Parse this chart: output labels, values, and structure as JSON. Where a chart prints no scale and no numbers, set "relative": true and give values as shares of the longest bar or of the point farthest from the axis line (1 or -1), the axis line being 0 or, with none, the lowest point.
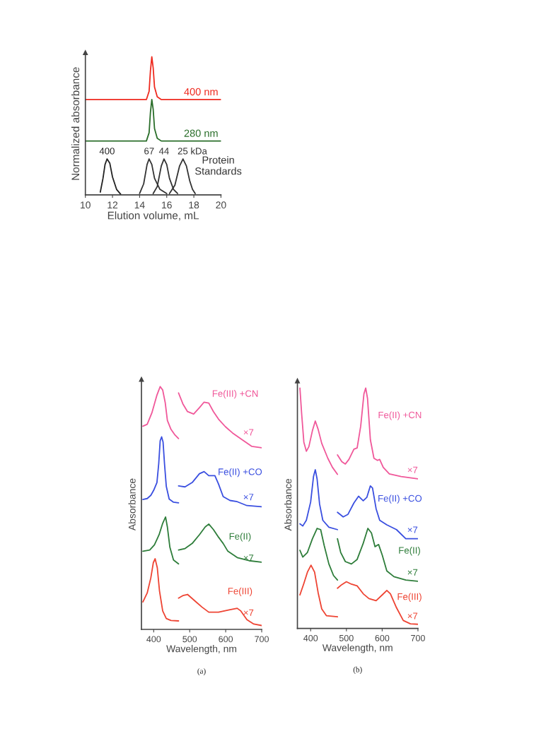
{
  "chart_data": [
    {
      "type": "line",
      "relative": true,
      "xlabel": "Elution volume, mL",
      "ylabel": "Normalized absorbance",
      "xlim": [
        10,
        20
      ],
      "xticks": [
        10,
        12,
        14,
        16,
        18,
        20
      ],
      "series": [
        {
          "name": "400 nm",
          "color": "#ee2a1f",
          "x": [
            10,
            14.5,
            14.7,
            14.8,
            14.9,
            15.0,
            15.1,
            15.3,
            15.6,
            20
          ],
          "values": [
            0.69,
            0.69,
            0.75,
            0.9,
            1.0,
            0.92,
            0.78,
            0.71,
            0.69,
            0.69
          ]
        },
        {
          "name": "280 nm",
          "color": "#2a6e2a",
          "x": [
            10,
            14.5,
            14.7,
            14.8,
            14.9,
            15.0,
            15.1,
            15.3,
            15.6,
            20
          ],
          "values": [
            0.39,
            0.39,
            0.45,
            0.6,
            0.69,
            0.62,
            0.48,
            0.41,
            0.39,
            0.39
          ]
        },
        {
          "name": "400",
          "color": "#222222",
          "x": [
            11.1,
            11.3,
            11.45,
            11.6,
            11.8,
            12.0,
            12.3,
            12.6
          ],
          "values": [
            0.02,
            0.12,
            0.22,
            0.26,
            0.23,
            0.13,
            0.04,
            0.005
          ]
        },
        {
          "name": "67",
          "color": "#333333",
          "x": [
            14.0,
            14.3,
            14.55,
            14.7,
            14.9,
            15.1,
            15.5,
            16.0
          ],
          "values": [
            0.01,
            0.08,
            0.22,
            0.26,
            0.22,
            0.12,
            0.04,
            0.01
          ]
        },
        {
          "name": "44",
          "color": "#333333",
          "x": [
            15.0,
            15.3,
            15.6,
            15.8,
            16.0,
            16.2,
            16.5,
            16.8
          ],
          "values": [
            0.01,
            0.06,
            0.21,
            0.26,
            0.22,
            0.12,
            0.04,
            0.01
          ]
        },
        {
          "name": "25 kDa",
          "color": "#333333",
          "x": [
            16.2,
            16.6,
            16.95,
            17.2,
            17.45,
            17.7,
            17.9,
            18.1
          ],
          "values": [
            0.01,
            0.07,
            0.21,
            0.26,
            0.21,
            0.1,
            0.04,
            0.01
          ]
        }
      ],
      "annotations": [
        "Protein\nStandards"
      ]
    },
    {
      "type": "line",
      "relative": true,
      "xlabel": "Wavelength, nm",
      "ylabel": "Absorbance",
      "xlim": [
        366,
        700
      ],
      "xticks": [
        400,
        500,
        600,
        700
      ],
      "series": [
        {
          "color": "#f0589a",
          "x": [
            370,
            382,
            395,
            409,
            418,
            425,
            432,
            438,
            448,
            458,
            469
          ],
          "values": [
            0.837,
            0.845,
            0.892,
            0.965,
            1.0,
            0.986,
            0.934,
            0.861,
            0.824,
            0.803,
            0.786
          ]
        },
        {
          "name": "Fe(III) +CN",
          "color": "#f0589a",
          "x": [
            469,
            481,
            494,
            511,
            527,
            540,
            553,
            566,
            580,
            599,
            619,
            645,
            672,
            700
          ],
          "values": [
            0.974,
            0.929,
            0.897,
            0.887,
            0.913,
            0.936,
            0.932,
            0.897,
            0.866,
            0.835,
            0.809,
            0.782,
            0.754,
            0.748
          ]
        },
        {
          "color": "#3a4fe0",
          "x": [
            370,
            382,
            392,
            400,
            409,
            414,
            418,
            422,
            426,
            430,
            435,
            443,
            455,
            469
          ],
          "values": [
            0.535,
            0.539,
            0.552,
            0.573,
            0.605,
            0.683,
            0.777,
            0.793,
            0.772,
            0.683,
            0.589,
            0.537,
            0.524,
            0.521
          ]
        },
        {
          "name": "Fe(II) +CO",
          "color": "#3a4fe0",
          "x": [
            469,
            487,
            507,
            527,
            540,
            553,
            570,
            580,
            593,
            612,
            632,
            659,
            700
          ],
          "values": [
            0.591,
            0.587,
            0.605,
            0.641,
            0.65,
            0.633,
            0.633,
            0.599,
            0.547,
            0.531,
            0.526,
            0.51,
            0.505
          ]
        },
        {
          "color": "#2e7d3a",
          "x": [
            370,
            389,
            402,
            415,
            425,
            433,
            438,
            445,
            455,
            469
          ],
          "values": [
            0.322,
            0.327,
            0.348,
            0.39,
            0.437,
            0.463,
            0.422,
            0.338,
            0.286,
            0.27
          ]
        },
        {
          "name": "Fe(II)",
          "color": "#2e7d3a",
          "x": [
            469,
            487,
            507,
            527,
            543,
            553,
            566,
            580,
            593,
            606,
            632,
            665,
            700
          ],
          "values": [
            0.327,
            0.333,
            0.354,
            0.39,
            0.422,
            0.434,
            0.411,
            0.38,
            0.354,
            0.322,
            0.296,
            0.283,
            0.277
          ]
        },
        {
          "color": "#ee4433",
          "x": [
            370,
            382,
            392,
            399,
            404,
            410,
            416,
            425,
            435,
            448,
            469
          ],
          "values": [
            0.113,
            0.15,
            0.212,
            0.275,
            0.291,
            0.254,
            0.16,
            0.076,
            0.045,
            0.037,
            0.035
          ]
        },
        {
          "name": "Fe(III)",
          "color": "#ee4433",
          "x": [
            469,
            481,
            494,
            514,
            534,
            553,
            580,
            612,
            632,
            642,
            659,
            678,
            700
          ],
          "values": [
            0.129,
            0.139,
            0.144,
            0.118,
            0.092,
            0.071,
            0.071,
            0.081,
            0.087,
            0.076,
            0.04,
            0.022,
            0.016
          ]
        }
      ],
      "annotations": [
        "×7",
        "×7",
        "×7",
        "×7",
        "(a)"
      ]
    },
    {
      "type": "line",
      "relative": true,
      "xlabel": "Wavelength, nm",
      "ylabel": "Absorbance",
      "xlim": [
        363,
        700
      ],
      "xticks": [
        400,
        500,
        600,
        700
      ],
      "series": [
        {
          "color": "#f0589a",
          "x": [
            370,
            375,
            381,
            388,
            395,
            405,
            413,
            421,
            431,
            448,
            461,
            475
          ],
          "values": [
            1.0,
            0.89,
            0.775,
            0.737,
            0.756,
            0.823,
            0.863,
            0.828,
            0.77,
            0.708,
            0.67,
            0.641
          ]
        },
        {
          "name": "Fe(II) +CN",
          "color": "#f0589a",
          "x": [
            475,
            487,
            497,
            507,
            521,
            530,
            540,
            549,
            554,
            559,
            567,
            577,
            587,
            593,
            603,
            620,
            653,
            700
          ],
          "values": [
            0.722,
            0.694,
            0.684,
            0.703,
            0.746,
            0.751,
            0.842,
            0.976,
            1.0,
            0.957,
            0.785,
            0.708,
            0.699,
            0.703,
            0.67,
            0.643,
            0.632,
            0.622
          ]
        },
        {
          "color": "#3a4fe0",
          "x": [
            370,
            378,
            388,
            400,
            408,
            413,
            418,
            425,
            434,
            451,
            475
          ],
          "values": [
            0.435,
            0.426,
            0.45,
            0.526,
            0.632,
            0.66,
            0.622,
            0.517,
            0.45,
            0.421,
            0.411
          ]
        },
        {
          "name": "Fe(II) +CO",
          "color": "#3a4fe0",
          "x": [
            475,
            491,
            504,
            521,
            534,
            547,
            557,
            567,
            573,
            583,
            593,
            613,
            640,
            666,
            700
          ],
          "values": [
            0.483,
            0.464,
            0.474,
            0.522,
            0.55,
            0.531,
            0.545,
            0.593,
            0.584,
            0.498,
            0.45,
            0.431,
            0.411,
            0.373,
            0.373
          ]
        },
        {
          "color": "#2e7d3a",
          "x": [
            370,
            378,
            391,
            405,
            418,
            428,
            438,
            451,
            464,
            475
          ],
          "values": [
            0.325,
            0.297,
            0.316,
            0.373,
            0.416,
            0.411,
            0.344,
            0.268,
            0.22,
            0.201
          ]
        },
        {
          "name": "Fe(II)",
          "color": "#2e7d3a",
          "x": [
            475,
            484,
            497,
            514,
            530,
            547,
            560,
            570,
            580,
            590,
            600,
            613,
            633,
            666,
            700
          ],
          "values": [
            0.373,
            0.316,
            0.278,
            0.268,
            0.287,
            0.354,
            0.416,
            0.397,
            0.34,
            0.349,
            0.306,
            0.239,
            0.215,
            0.201,
            0.196
          ]
        },
        {
          "color": "#ee4433",
          "x": [
            370,
            381,
            391,
            401,
            411,
            421,
            431,
            444,
            475
          ],
          "values": [
            0.139,
            0.187,
            0.234,
            0.263,
            0.234,
            0.148,
            0.081,
            0.053,
            0.048
          ]
        },
        {
          "name": "Fe(III)",
          "color": "#ee4433",
          "x": [
            475,
            487,
            500,
            514,
            530,
            547,
            563,
            583,
            600,
            613,
            623,
            640,
            659,
            679,
            700
          ],
          "values": [
            0.167,
            0.182,
            0.194,
            0.184,
            0.177,
            0.144,
            0.124,
            0.115,
            0.139,
            0.158,
            0.144,
            0.086,
            0.033,
            0.019,
            0.017
          ]
        }
      ],
      "annotations": [
        "×7",
        "×7",
        "×7",
        "×7",
        "(b)"
      ]
    }
  ]
}
